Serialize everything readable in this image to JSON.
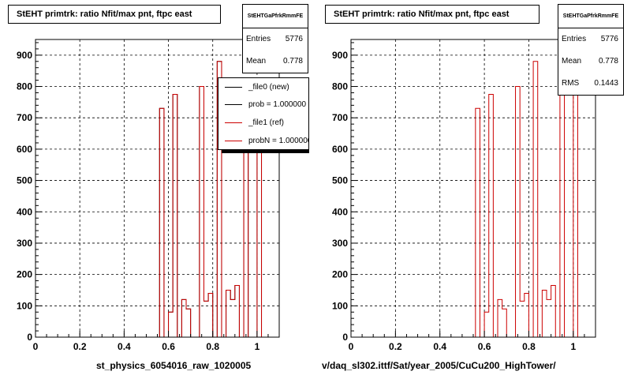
{
  "colors": {
    "new": "#000000",
    "ref": "#cc0000",
    "frame": "#000000"
  },
  "bottom_note": "",
  "panels": [
    {
      "title": "StEHT primtrk: ratio Nfit/max pnt, ftpc east",
      "stats": {
        "name": "StEHTGaPfrkRmmFE",
        "entries_label": "Entries",
        "entries": "5776",
        "mean_label": "Mean",
        "mean": "0.778"
      },
      "x_title": "st_physics_6054016_raw_1020005",
      "legend": [
        {
          "label": "_file0 (new)",
          "color": "#000000"
        },
        {
          "label": "prob = 1.000000",
          "color": "#000000"
        },
        {
          "label": "_file1 (ref)",
          "color": "#cc0000"
        },
        {
          "label": "probN = 1.000000",
          "color": "#cc0000"
        }
      ]
    },
    {
      "title": "StEHT primtrk: ratio Nfit/max pnt, ftpc east",
      "stats": {
        "name": "StEHTGaPfrkRmmFE",
        "entries_label": "Entries",
        "entries": "5776",
        "mean_label": "Mean",
        "mean": "0.778",
        "rms_label": "RMS",
        "rms": "0.1443"
      },
      "x_title": "v/daq_sl302.ittf/Sat/year_2005/CuCu200_HighTower/"
    }
  ],
  "chart_data": [
    {
      "type": "bar",
      "title": "StEHT primtrk: ratio Nfit/max pnt, ftpc east",
      "xlabel": "st_physics_6054016_raw_1020005",
      "ylabel": "",
      "xlim": [
        0,
        1.1
      ],
      "ylim": [
        0,
        950
      ],
      "grid": true,
      "legend_position": "top-right",
      "x_ticks": [
        "0",
        "0.2",
        "0.4",
        "0.6",
        "0.8",
        "1"
      ],
      "y_ticks": [
        "0",
        "100",
        "200",
        "300",
        "400",
        "500",
        "600",
        "700",
        "800",
        "900"
      ],
      "bin_width": 0.02,
      "bin_edges_start": 0.54,
      "series": [
        {
          "name": "_file0 (new)",
          "values": [
            0,
            730,
            0,
            80,
            775,
            0,
            120,
            90,
            0,
            0,
            800,
            115,
            140,
            0,
            880,
            0,
            150,
            120,
            165,
            0,
            810,
            0,
            0,
            800,
            0
          ]
        },
        {
          "name": "_file1 (ref)",
          "values": [
            0,
            730,
            0,
            80,
            775,
            0,
            120,
            90,
            0,
            0,
            800,
            115,
            140,
            0,
            880,
            0,
            150,
            120,
            165,
            0,
            810,
            0,
            0,
            800,
            0
          ]
        }
      ]
    },
    {
      "type": "bar",
      "title": "StEHT primtrk: ratio Nfit/max pnt, ftpc east",
      "xlabel": "v/daq_sl302.ittf/Sat/year_2005/CuCu200_HighTower/",
      "ylabel": "",
      "xlim": [
        0,
        1.1
      ],
      "ylim": [
        0,
        950
      ],
      "grid": true,
      "x_ticks": [
        "0",
        "0.2",
        "0.4",
        "0.6",
        "0.8",
        "1"
      ],
      "y_ticks": [
        "0",
        "100",
        "200",
        "300",
        "400",
        "500",
        "600",
        "700",
        "800",
        "900"
      ],
      "bin_width": 0.02,
      "bin_edges_start": 0.54,
      "series": [
        {
          "name": "",
          "values": [
            0,
            730,
            0,
            80,
            775,
            0,
            120,
            90,
            0,
            0,
            800,
            115,
            140,
            0,
            880,
            0,
            150,
            120,
            165,
            0,
            810,
            0,
            0,
            800,
            0
          ]
        }
      ]
    }
  ]
}
